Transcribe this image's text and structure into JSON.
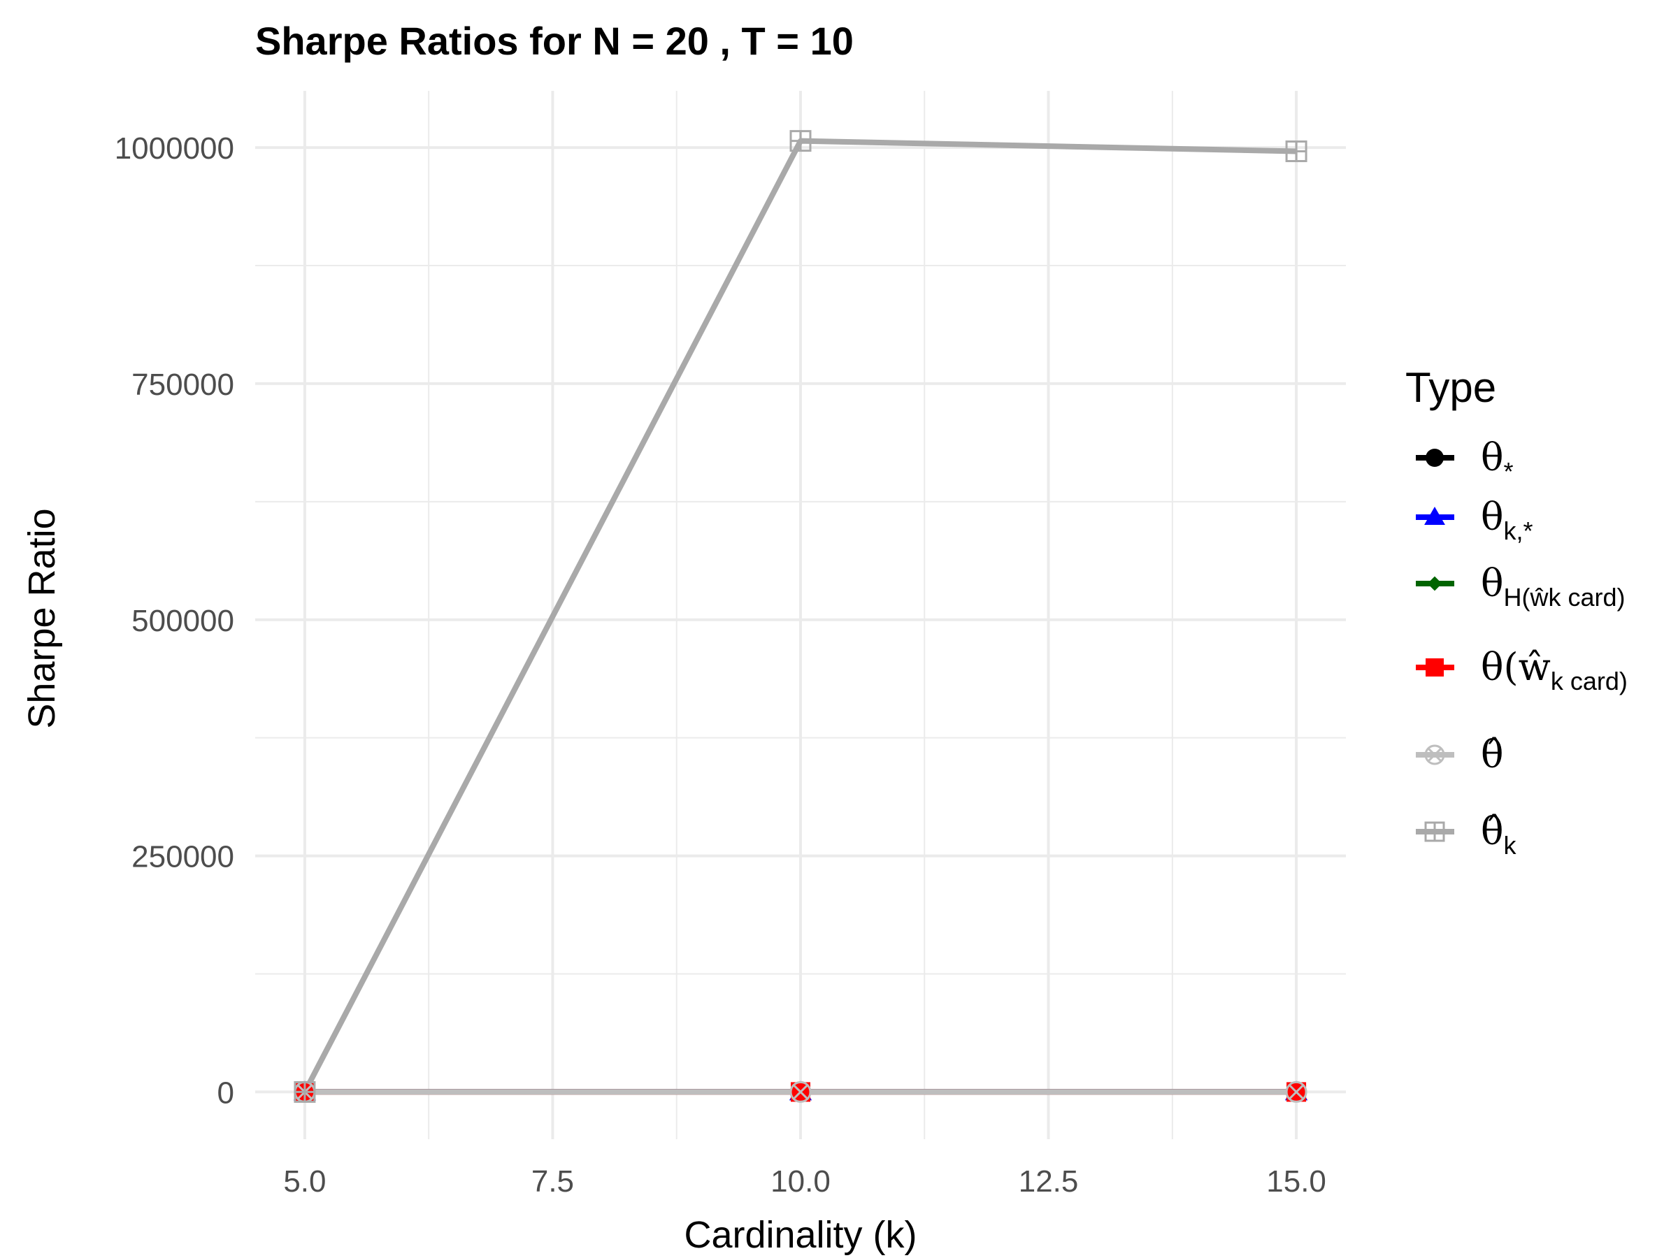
{
  "chart_data": {
    "type": "line",
    "title": "Sharpe Ratios for N = 20 , T = 10",
    "xlabel": "Cardinality (k)",
    "ylabel": "Sharpe Ratio",
    "x": [
      5,
      10,
      15
    ],
    "xlim": [
      4.5,
      15.5
    ],
    "ylim": [
      -50000,
      1060000
    ],
    "xticks": [
      5,
      7.5,
      10,
      12.5,
      15
    ],
    "xtick_labels": [
      "5.0",
      "7.5",
      "10.0",
      "12.5",
      "15.0"
    ],
    "yticks": [
      0,
      250000,
      500000,
      750000,
      1000000
    ],
    "ytick_labels": [
      "0",
      "250000",
      "500000",
      "750000",
      "1000000"
    ],
    "grid": true,
    "legend_position": "right",
    "legend_title": "Type",
    "series": [
      {
        "name": "θ*",
        "label_main": "θ",
        "label_sub": "*",
        "color": "#000000",
        "marker": "circle",
        "values": [
          1,
          1,
          1
        ]
      },
      {
        "name": "θk,*",
        "label_main": "θ",
        "label_sub": "k,*",
        "color": "#0000ff",
        "marker": "triangle",
        "values": [
          1,
          1,
          1
        ]
      },
      {
        "name": "θH(ŵk^card)",
        "label_main": "θ",
        "label_sub": "H(ŵk card)",
        "color": "#006400",
        "marker": "diamond",
        "values": [
          1,
          1,
          1
        ]
      },
      {
        "name": "θ(ŵk^card)",
        "label_main": "θ(ŵ",
        "label_sub": "k card)",
        "color": "#ff0000",
        "marker": "square",
        "values": [
          1,
          1,
          1
        ]
      },
      {
        "name": "θ̂",
        "label_main": "θ̂",
        "label_sub": "",
        "color": "#bebebe",
        "marker": "circle-x",
        "values": [
          1,
          1,
          1
        ]
      },
      {
        "name": "θ̂k",
        "label_main": "θ̂",
        "label_sub": "k",
        "color": "#a9a9a9",
        "marker": "square-plus",
        "values": [
          1,
          1007000,
          996000
        ]
      }
    ]
  }
}
